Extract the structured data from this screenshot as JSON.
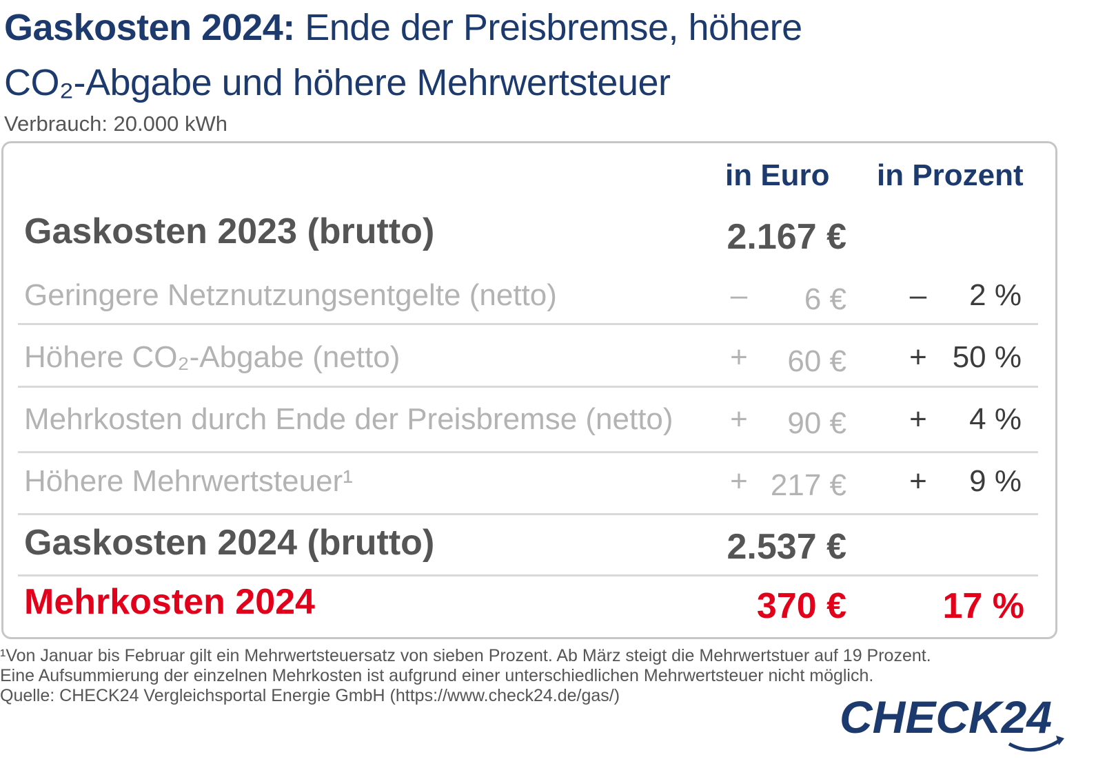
{
  "title": {
    "bold": "Gaskosten 2024:",
    "rest_line1": " Ende der Preisbremse, höhere",
    "line2": "CO₂-Abgabe und höhere Mehrwertsteuer"
  },
  "subtitle": "Verbrauch: 20.000 kWh",
  "columns": {
    "euro": "in Euro",
    "percent": "in Prozent"
  },
  "rows": [
    {
      "label": "Gaskosten 2023 (brutto)",
      "euro": "2.167 €"
    },
    {
      "label": "Geringere Netznutzungsentgelte (netto)",
      "euro_sign": "–",
      "euro": "6 €",
      "pct_sign": "–",
      "pct": "2 %"
    },
    {
      "label": "Höhere CO₂-Abgabe (netto)",
      "euro_sign": "+",
      "euro": "60 €",
      "pct_sign": "+",
      "pct": "50 %"
    },
    {
      "label": "Mehrkosten durch Ende der Preisbremse (netto)",
      "euro_sign": "+",
      "euro": "90 €",
      "pct_sign": "+",
      "pct": "4 %"
    },
    {
      "label": "Höhere Mehrwertsteuer¹",
      "euro_sign": "+",
      "euro": "217 €",
      "pct_sign": "+",
      "pct": "9 %"
    },
    {
      "label": "Gaskosten 2024 (brutto)",
      "euro": "2.537 €"
    },
    {
      "label": "Mehrkosten 2024",
      "euro": "370 €",
      "pct": "17 %"
    }
  ],
  "footnotes": [
    "¹Von Januar bis Februar gilt ein Mehrwertsteuersatz von sieben Prozent. Ab März steigt die Mehrwertstuer auf 19 Prozent.",
    "Eine Aufsummierung der einzelnen Mehrkosten ist aufgrund einer unterschiedlichen Mehrwertsteuer nicht möglich.",
    "Quelle: CHECK24 Vergleichsportal Energie GmbH (https://www.check24.de/gas/)"
  ],
  "logo": {
    "text": "CHECK24",
    "color": "#1d3a6e"
  },
  "colors": {
    "navy": "#1d3a6e",
    "red": "#e2001a",
    "gray": "#555555",
    "light": "#b3b3b3"
  }
}
